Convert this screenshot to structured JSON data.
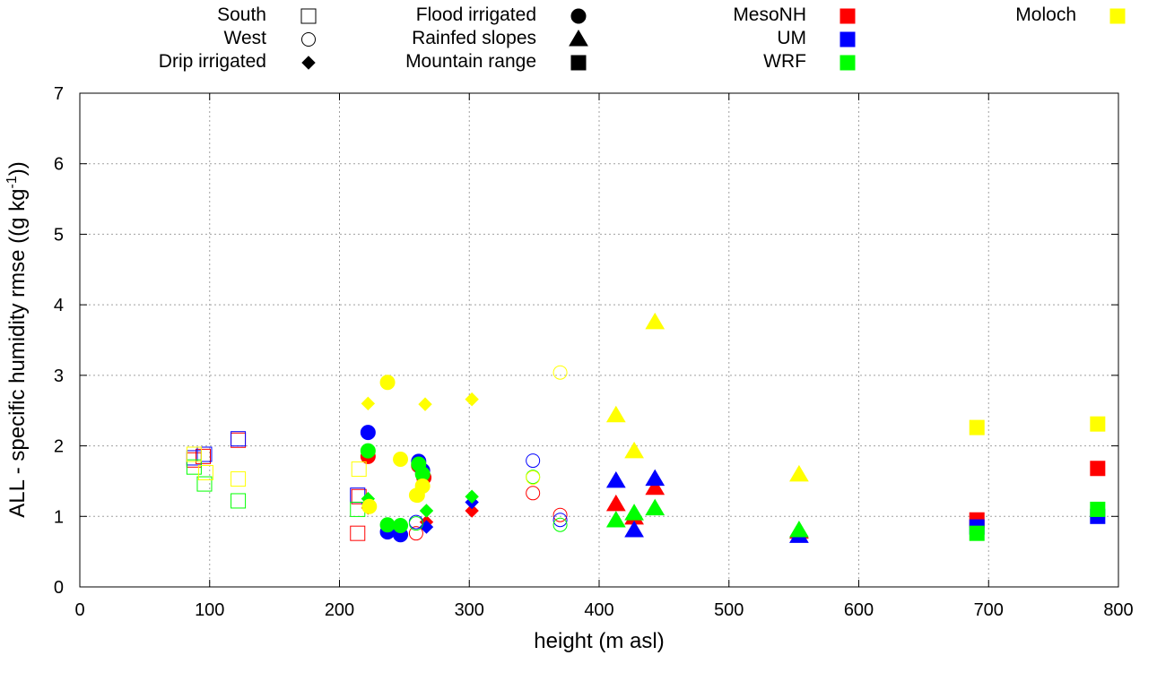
{
  "chart_data": {
    "type": "scatter",
    "title": "",
    "xlabel": "height (m asl)",
    "ylabel_prefix": "ALL - specific humidity rmse ((g kg",
    "ylabel_sup": "-1",
    "ylabel_suffix": "))",
    "xlim": [
      0,
      800
    ],
    "ylim": [
      0,
      7
    ],
    "x_ticks": [
      "0",
      "100",
      "200",
      "300",
      "400",
      "500",
      "600",
      "700",
      "800"
    ],
    "y_ticks": [
      "0",
      "1",
      "2",
      "3",
      "4",
      "5",
      "6",
      "7"
    ],
    "grid": true,
    "legend_placement": "top",
    "legend_shapes": [
      {
        "label": "South",
        "shape": "square",
        "fill": false
      },
      {
        "label": "West",
        "shape": "circle",
        "fill": false
      },
      {
        "label": "Drip irrigated",
        "shape": "diamond",
        "fill": true
      },
      {
        "label": "Flood irrigated",
        "shape": "circle",
        "fill": true
      },
      {
        "label": "Rainfed slopes",
        "shape": "triangle",
        "fill": true
      },
      {
        "label": "Mountain range",
        "shape": "square",
        "fill": true
      }
    ],
    "legend_models": [
      {
        "label": "MesoNH",
        "color": "#ff0000"
      },
      {
        "label": "UM",
        "color": "#0000ff"
      },
      {
        "label": "WRF",
        "color": "#00ff00"
      },
      {
        "label": "Moloch",
        "color": "#ffff00"
      }
    ],
    "colors": {
      "MesoNH": "#ff0000",
      "UM": "#0000ff",
      "WRF": "#00ff00",
      "Moloch": "#ffff00"
    },
    "series": [
      {
        "name": "MesoNH",
        "points": [
          {
            "x": 88,
            "y": 1.8,
            "s": "square",
            "f": false
          },
          {
            "x": 95,
            "y": 1.85,
            "s": "square",
            "f": false
          },
          {
            "x": 122,
            "y": 2.08,
            "s": "square",
            "f": false
          },
          {
            "x": 214,
            "y": 0.76,
            "s": "square",
            "f": false
          },
          {
            "x": 215,
            "y": 1.28,
            "s": "square",
            "f": false
          },
          {
            "x": 259,
            "y": 0.76,
            "s": "circle",
            "f": false
          },
          {
            "x": 349,
            "y": 1.33,
            "s": "circle",
            "f": false
          },
          {
            "x": 370,
            "y": 1.02,
            "s": "circle",
            "f": false
          },
          {
            "x": 222,
            "y": 1.12,
            "s": "diamond",
            "f": true
          },
          {
            "x": 267,
            "y": 0.92,
            "s": "diamond",
            "f": true
          },
          {
            "x": 302,
            "y": 1.08,
            "s": "diamond",
            "f": true
          },
          {
            "x": 222,
            "y": 1.85,
            "s": "circle",
            "f": true
          },
          {
            "x": 261,
            "y": 1.72,
            "s": "circle",
            "f": true
          },
          {
            "x": 265,
            "y": 1.55,
            "s": "circle",
            "f": true
          },
          {
            "x": 413,
            "y": 1.17,
            "s": "triangle",
            "f": true
          },
          {
            "x": 427,
            "y": 0.98,
            "s": "triangle",
            "f": true
          },
          {
            "x": 443,
            "y": 1.4,
            "s": "triangle",
            "f": true
          },
          {
            "x": 554,
            "y": 0.78,
            "s": "triangle",
            "f": true
          },
          {
            "x": 691,
            "y": 0.95,
            "s": "square",
            "f": true
          },
          {
            "x": 784,
            "y": 1.68,
            "s": "square",
            "f": true
          }
        ]
      },
      {
        "name": "UM",
        "points": [
          {
            "x": 88,
            "y": 1.83,
            "s": "square",
            "f": false
          },
          {
            "x": 96,
            "y": 1.88,
            "s": "square",
            "f": false
          },
          {
            "x": 122,
            "y": 2.1,
            "s": "square",
            "f": false
          },
          {
            "x": 214,
            "y": 1.3,
            "s": "square",
            "f": false
          },
          {
            "x": 259,
            "y": 0.92,
            "s": "circle",
            "f": false
          },
          {
            "x": 349,
            "y": 1.79,
            "s": "circle",
            "f": false
          },
          {
            "x": 370,
            "y": 0.95,
            "s": "circle",
            "f": false
          },
          {
            "x": 222,
            "y": 1.18,
            "s": "diamond",
            "f": true
          },
          {
            "x": 267,
            "y": 0.85,
            "s": "diamond",
            "f": true
          },
          {
            "x": 302,
            "y": 1.2,
            "s": "diamond",
            "f": true
          },
          {
            "x": 222,
            "y": 2.19,
            "s": "circle",
            "f": true
          },
          {
            "x": 237,
            "y": 0.78,
            "s": "circle",
            "f": true
          },
          {
            "x": 247,
            "y": 0.74,
            "s": "circle",
            "f": true
          },
          {
            "x": 261,
            "y": 1.78,
            "s": "circle",
            "f": true
          },
          {
            "x": 264,
            "y": 1.65,
            "s": "circle",
            "f": true
          },
          {
            "x": 413,
            "y": 1.5,
            "s": "triangle",
            "f": true
          },
          {
            "x": 427,
            "y": 0.8,
            "s": "triangle",
            "f": true
          },
          {
            "x": 443,
            "y": 1.53,
            "s": "triangle",
            "f": true
          },
          {
            "x": 554,
            "y": 0.72,
            "s": "triangle",
            "f": true
          },
          {
            "x": 691,
            "y": 0.85,
            "s": "square",
            "f": true
          },
          {
            "x": 784,
            "y": 1.0,
            "s": "square",
            "f": true
          }
        ]
      },
      {
        "name": "WRF",
        "points": [
          {
            "x": 88,
            "y": 1.7,
            "s": "square",
            "f": false
          },
          {
            "x": 96,
            "y": 1.46,
            "s": "square",
            "f": false
          },
          {
            "x": 122,
            "y": 1.22,
            "s": "square",
            "f": false
          },
          {
            "x": 214,
            "y": 1.1,
            "s": "square",
            "f": false
          },
          {
            "x": 259,
            "y": 0.9,
            "s": "circle",
            "f": false
          },
          {
            "x": 349,
            "y": 1.56,
            "s": "circle",
            "f": false
          },
          {
            "x": 370,
            "y": 0.88,
            "s": "circle",
            "f": false
          },
          {
            "x": 222,
            "y": 1.25,
            "s": "diamond",
            "f": true
          },
          {
            "x": 267,
            "y": 1.08,
            "s": "diamond",
            "f": true
          },
          {
            "x": 302,
            "y": 1.28,
            "s": "diamond",
            "f": true
          },
          {
            "x": 222,
            "y": 1.93,
            "s": "circle",
            "f": true
          },
          {
            "x": 237,
            "y": 0.88,
            "s": "circle",
            "f": true
          },
          {
            "x": 247,
            "y": 0.87,
            "s": "circle",
            "f": true
          },
          {
            "x": 261,
            "y": 1.74,
            "s": "circle",
            "f": true
          },
          {
            "x": 264,
            "y": 1.6,
            "s": "circle",
            "f": true
          },
          {
            "x": 413,
            "y": 0.94,
            "s": "triangle",
            "f": true
          },
          {
            "x": 427,
            "y": 1.04,
            "s": "triangle",
            "f": true
          },
          {
            "x": 443,
            "y": 1.11,
            "s": "triangle",
            "f": true
          },
          {
            "x": 554,
            "y": 0.8,
            "s": "triangle",
            "f": true
          },
          {
            "x": 691,
            "y": 0.76,
            "s": "square",
            "f": true
          },
          {
            "x": 784,
            "y": 1.1,
            "s": "square",
            "f": true
          }
        ]
      },
      {
        "name": "Moloch",
        "points": [
          {
            "x": 88,
            "y": 1.88,
            "s": "square",
            "f": false
          },
          {
            "x": 97,
            "y": 1.62,
            "s": "square",
            "f": false
          },
          {
            "x": 122,
            "y": 1.53,
            "s": "square",
            "f": false
          },
          {
            "x": 215,
            "y": 1.67,
            "s": "square",
            "f": false
          },
          {
            "x": 259,
            "y": 1.3,
            "s": "circle",
            "f": false
          },
          {
            "x": 349,
            "y": 1.55,
            "s": "circle",
            "f": false
          },
          {
            "x": 370,
            "y": 3.04,
            "s": "circle",
            "f": false
          },
          {
            "x": 222,
            "y": 2.6,
            "s": "diamond",
            "f": true
          },
          {
            "x": 266,
            "y": 2.59,
            "s": "diamond",
            "f": true
          },
          {
            "x": 302,
            "y": 2.66,
            "s": "diamond",
            "f": true
          },
          {
            "x": 223,
            "y": 1.14,
            "s": "circle",
            "f": true
          },
          {
            "x": 237,
            "y": 2.9,
            "s": "circle",
            "f": true
          },
          {
            "x": 247,
            "y": 1.81,
            "s": "circle",
            "f": true
          },
          {
            "x": 260,
            "y": 1.3,
            "s": "circle",
            "f": true
          },
          {
            "x": 264,
            "y": 1.43,
            "s": "circle",
            "f": true
          },
          {
            "x": 413,
            "y": 2.43,
            "s": "triangle",
            "f": true
          },
          {
            "x": 427,
            "y": 1.92,
            "s": "triangle",
            "f": true
          },
          {
            "x": 443,
            "y": 3.75,
            "s": "triangle",
            "f": true
          },
          {
            "x": 554,
            "y": 1.59,
            "s": "triangle",
            "f": true
          },
          {
            "x": 691,
            "y": 2.26,
            "s": "square",
            "f": true
          },
          {
            "x": 784,
            "y": 2.31,
            "s": "square",
            "f": true
          }
        ]
      }
    ]
  }
}
